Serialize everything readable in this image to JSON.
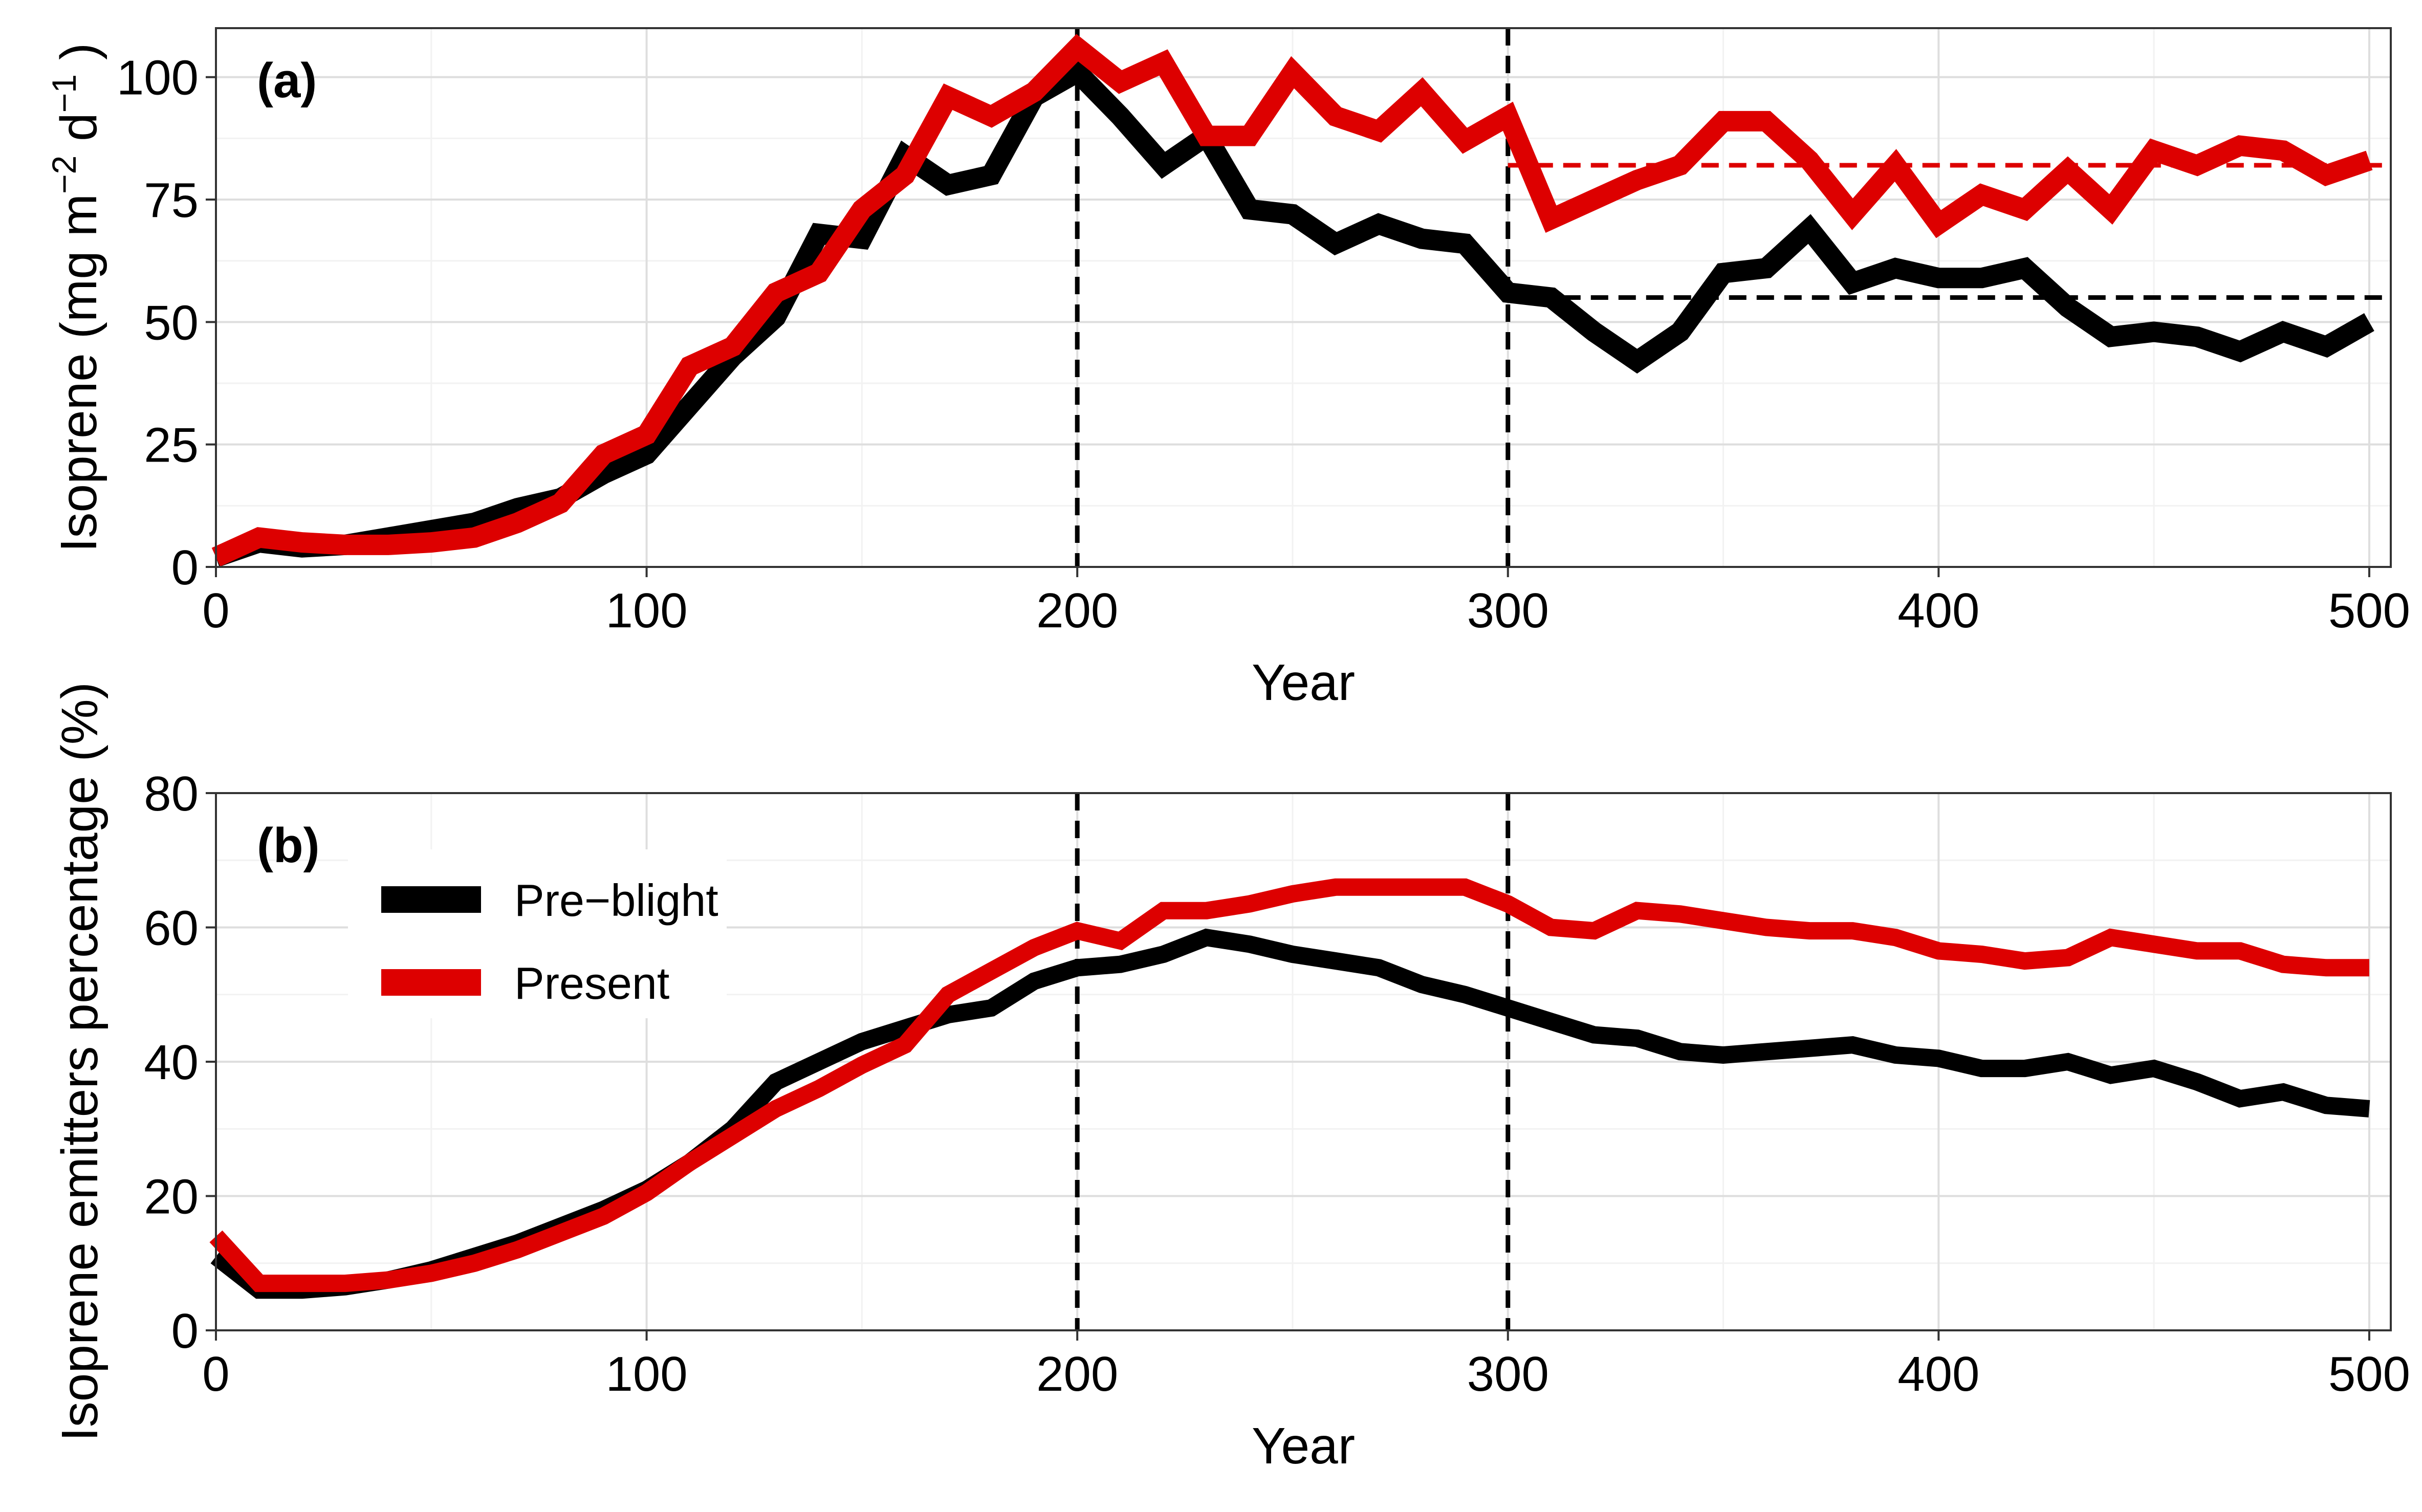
{
  "chart_data": [
    {
      "panel_label": "(a)",
      "type": "line",
      "xlabel": "Year",
      "ylabel": "Isoprene (mg m",
      "ylabel_sup1": "−2",
      "ylabel_mid": " d",
      "ylabel_sup2": "−1",
      "ylabel_end": ")",
      "xlim": [
        0,
        505
      ],
      "ylim": [
        0,
        110
      ],
      "xticks": [
        0,
        100,
        200,
        300,
        400,
        500
      ],
      "yticks": [
        0,
        25,
        50,
        75,
        100
      ],
      "xtick_labels": [
        "0",
        "100",
        "200",
        "300",
        "400",
        "500"
      ],
      "ytick_labels": [
        "0",
        "25",
        "50",
        "75",
        "100"
      ],
      "grid": true,
      "x": [
        0,
        10,
        20,
        30,
        40,
        50,
        60,
        70,
        80,
        90,
        100,
        110,
        120,
        130,
        140,
        150,
        160,
        170,
        180,
        190,
        200,
        210,
        220,
        230,
        240,
        250,
        260,
        270,
        280,
        290,
        300,
        310,
        320,
        330,
        340,
        350,
        360,
        370,
        380,
        390,
        400,
        410,
        420,
        430,
        440,
        450,
        460,
        470,
        480,
        490,
        500
      ],
      "series": [
        {
          "name": "Pre−blight",
          "color": "#000000",
          "values": [
            2,
            5,
            4,
            4.5,
            6,
            7.5,
            9,
            12,
            14,
            19,
            23,
            33,
            43,
            51,
            68,
            67,
            84,
            78,
            80,
            96,
            101,
            92,
            82,
            88,
            73,
            72,
            66,
            70,
            67,
            66,
            56,
            55,
            48,
            42,
            48,
            60,
            61,
            69,
            58,
            61,
            59,
            59,
            61,
            53,
            47,
            48,
            47,
            44,
            48,
            45,
            50
          ]
        },
        {
          "name": "Present",
          "color": "#dd0000",
          "values": [
            2,
            6,
            5,
            4.5,
            4.5,
            5,
            6,
            9,
            13,
            23,
            27,
            41,
            45,
            56,
            60,
            73,
            80,
            96,
            92,
            97,
            106,
            99,
            103,
            88,
            88,
            101,
            92,
            89,
            97,
            87,
            92,
            71,
            75,
            79,
            82,
            91,
            91,
            83,
            72,
            82,
            70,
            76,
            73,
            81,
            73,
            85,
            82,
            86,
            85,
            80,
            83
          ]
        }
      ],
      "reference_lines": [
        {
          "orientation": "vertical",
          "x": 200,
          "color": "#000000",
          "style": "dashed"
        },
        {
          "orientation": "vertical",
          "x": 300,
          "color": "#000000",
          "style": "dashed"
        },
        {
          "orientation": "horizontal",
          "y": 82,
          "x_from": 300,
          "x_to": 505,
          "color": "#dd0000",
          "style": "dashed"
        },
        {
          "orientation": "horizontal",
          "y": 55,
          "x_from": 300,
          "x_to": 505,
          "color": "#000000",
          "style": "dashed"
        }
      ]
    },
    {
      "panel_label": "(b)",
      "type": "line",
      "xlabel": "Year",
      "ylabel": "Isoprene emitters percentage (%)",
      "xlim": [
        0,
        505
      ],
      "ylim": [
        0,
        80
      ],
      "xticks": [
        0,
        100,
        200,
        300,
        400,
        500
      ],
      "yticks": [
        0,
        20,
        40,
        60,
        80
      ],
      "xtick_labels": [
        "0",
        "100",
        "200",
        "300",
        "400",
        "500"
      ],
      "ytick_labels": [
        "0",
        "20",
        "40",
        "60",
        "80"
      ],
      "grid": true,
      "legend_position": "top-left",
      "x": [
        0,
        10,
        20,
        30,
        40,
        50,
        60,
        70,
        80,
        90,
        100,
        110,
        120,
        130,
        140,
        150,
        160,
        170,
        180,
        190,
        200,
        210,
        220,
        230,
        240,
        250,
        260,
        270,
        280,
        290,
        300,
        310,
        320,
        330,
        340,
        350,
        360,
        370,
        380,
        390,
        400,
        410,
        420,
        430,
        440,
        450,
        460,
        470,
        480,
        490,
        500
      ],
      "series": [
        {
          "name": "Pre−blight",
          "color": "#000000",
          "values": [
            11,
            6,
            6,
            6.5,
            7.5,
            9,
            11,
            13,
            15.5,
            18,
            21,
            25,
            30,
            37,
            40,
            43,
            45,
            47,
            48,
            52,
            54,
            54.5,
            56,
            58.5,
            57.5,
            56,
            55,
            54,
            51.5,
            50,
            48,
            46,
            44,
            43.5,
            41.5,
            41,
            41.5,
            42,
            42.5,
            41,
            40.5,
            39,
            39,
            40,
            38,
            39,
            37,
            34.5,
            35.5,
            33.5,
            33
          ]
        },
        {
          "name": "Present",
          "color": "#dd0000",
          "values": [
            14,
            7,
            7,
            7,
            7.5,
            8.5,
            10,
            12,
            14.5,
            17,
            20.5,
            25,
            29,
            33,
            36,
            39.5,
            42.5,
            50,
            53.5,
            57,
            59.5,
            58,
            62.5,
            62.5,
            63.5,
            65,
            66,
            66,
            66,
            66,
            63.5,
            60,
            59.5,
            62.5,
            62,
            61,
            60,
            59.5,
            59.5,
            58.5,
            56.5,
            56,
            55,
            55.5,
            58.5,
            57.5,
            56.5,
            56.5,
            54.5,
            54,
            54
          ]
        }
      ],
      "reference_lines": [
        {
          "orientation": "vertical",
          "x": 200,
          "color": "#000000",
          "style": "dashed"
        },
        {
          "orientation": "vertical",
          "x": 300,
          "color": "#000000",
          "style": "dashed"
        }
      ]
    }
  ]
}
